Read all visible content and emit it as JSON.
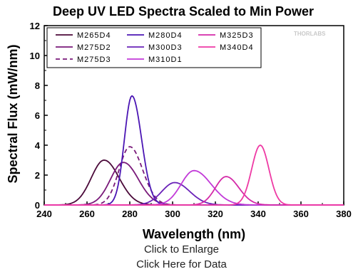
{
  "chart_data": {
    "type": "line",
    "title": "Deep UV LED Spectra Scaled to Min Power",
    "xlabel": "Wavelength (nm)",
    "ylabel": "Spectral Flux (mW/nm)",
    "xlim": [
      240,
      380
    ],
    "ylim": [
      0,
      12
    ],
    "xticks": [
      240,
      260,
      280,
      300,
      320,
      340,
      360,
      380
    ],
    "yticks": [
      0,
      2,
      4,
      6,
      8,
      10,
      12
    ],
    "grid": false,
    "legend_position": "top-left",
    "watermark": "THORLABS",
    "series": [
      {
        "name": "M265D4",
        "color": "#4b0a3a",
        "dash": false,
        "peak": 268,
        "height": 3.0,
        "wl": 6,
        "wr": 7
      },
      {
        "name": "M275D2",
        "color": "#7a1a7a",
        "dash": false,
        "peak": 277,
        "height": 2.85,
        "wl": 6,
        "wr": 7
      },
      {
        "name": "M275D3",
        "color": "#7a1a7a",
        "dash": true,
        "peak": 280,
        "height": 3.9,
        "wl": 5,
        "wr": 6
      },
      {
        "name": "M280D4",
        "color": "#4b16b4",
        "dash": false,
        "peak": 281,
        "height": 7.3,
        "wl": 3.5,
        "wr": 4.5
      },
      {
        "name": "M300D3",
        "color": "#6a22b8",
        "dash": false,
        "peak": 301,
        "height": 1.5,
        "wl": 6,
        "wr": 7
      },
      {
        "name": "M310D1",
        "color": "#c23ad8",
        "dash": false,
        "peak": 310,
        "height": 2.3,
        "wl": 6,
        "wr": 8
      },
      {
        "name": "M325D3",
        "color": "#d42aa8",
        "dash": false,
        "peak": 325,
        "height": 1.9,
        "wl": 5,
        "wr": 6
      },
      {
        "name": "M340D4",
        "color": "#ee3aa4",
        "dash": false,
        "peak": 341,
        "height": 4.0,
        "wl": 4,
        "wr": 4
      }
    ]
  },
  "captions": {
    "enlarge": "Click to Enlarge",
    "data": "Click Here for Data"
  }
}
